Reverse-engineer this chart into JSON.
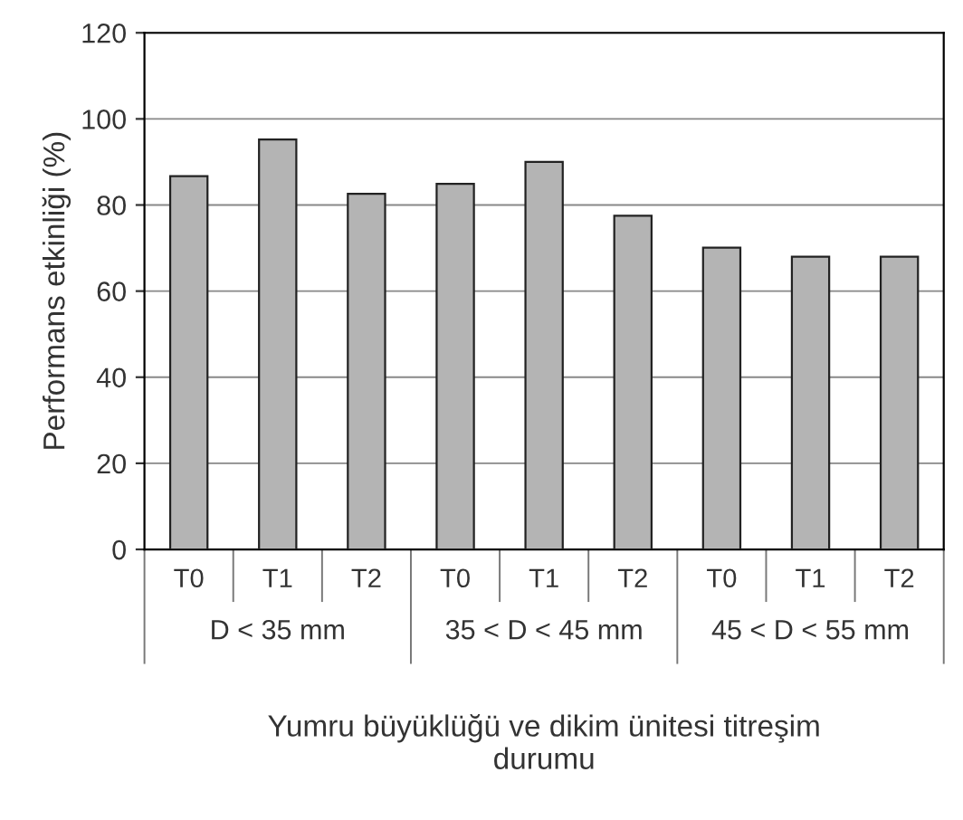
{
  "chart_data": {
    "type": "bar",
    "categories": [
      "T0",
      "T1",
      "T2",
      "T0",
      "T1",
      "T2",
      "T0",
      "T1",
      "T2"
    ],
    "values": [
      86.7,
      95.2,
      82.6,
      84.9,
      90.0,
      77.5,
      70.1,
      68.0,
      68.0
    ],
    "color": "#b4b4b4",
    "ylabel": "Performans etkinliği (%)",
    "xlabel": "Yumru büyüklüğü ve dikim ünitesi titreşim\ndurumu",
    "annotations": [
      "D < 35 mm",
      "35 < D < 45 mm",
      "45 < D < 55 mm"
    ],
    "ylim": [
      0,
      120
    ],
    "yticks": [
      0,
      20,
      40,
      60,
      80,
      100,
      120
    ],
    "grid": "y"
  }
}
